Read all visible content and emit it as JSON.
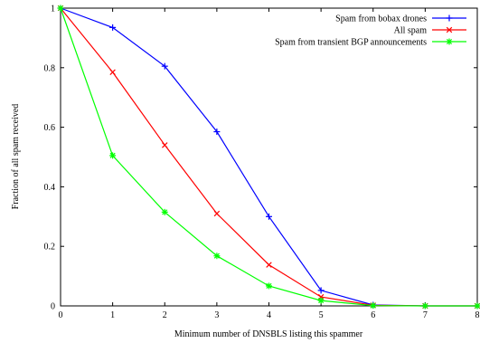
{
  "chart_data": {
    "type": "line",
    "xlabel": "Minimum number of DNSBLS listing this spammer",
    "ylabel": "Fraction of all spam received",
    "xlim": [
      0,
      8
    ],
    "ylim": [
      0,
      1
    ],
    "x_ticks": [
      0,
      1,
      2,
      3,
      4,
      5,
      6,
      7,
      8
    ],
    "y_ticks": [
      0,
      0.2,
      0.4,
      0.6,
      0.8,
      1
    ],
    "y_tick_labels": [
      "0",
      "0.2",
      "0.4",
      "0.6",
      "0.8",
      "1"
    ],
    "grid": false,
    "legend_position": "top-right",
    "x": [
      0,
      1,
      2,
      3,
      4,
      5,
      6,
      7,
      8
    ],
    "series": [
      {
        "name": "Spam from bobax drones",
        "color": "#0000ff",
        "marker": "plus",
        "values": [
          1.0,
          0.935,
          0.805,
          0.585,
          0.3,
          0.052,
          0.003,
          0.0,
          0.0
        ]
      },
      {
        "name": "All spam",
        "color": "#ff0000",
        "marker": "cross",
        "values": [
          1.0,
          0.785,
          0.54,
          0.31,
          0.138,
          0.03,
          0.002,
          0.0,
          0.0
        ]
      },
      {
        "name": "Spam from transient BGP announcements",
        "color": "#00ff00",
        "marker": "star",
        "values": [
          1.0,
          0.505,
          0.315,
          0.168,
          0.067,
          0.018,
          0.001,
          0.0,
          0.0
        ]
      }
    ]
  }
}
